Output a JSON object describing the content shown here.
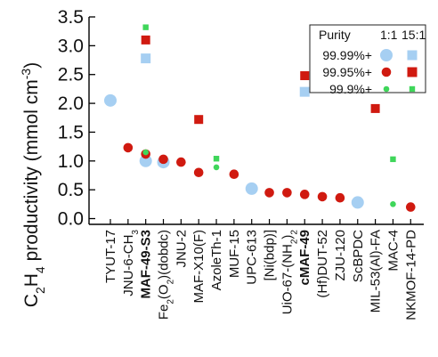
{
  "chart_data": {
    "type": "scatter",
    "title": "",
    "xlabel": "",
    "ylabel_parts": [
      "C",
      "2",
      "H",
      "4",
      " productivity (mmol cm",
      "-3",
      ")"
    ],
    "ylim": [
      -0.1,
      3.5
    ],
    "yticks": [
      0.0,
      0.5,
      1.0,
      1.5,
      2.0,
      2.5,
      3.0,
      3.5
    ],
    "ytick_labels": [
      "0.0",
      "0.5",
      "1.0",
      "1.5",
      "2.0",
      "2.5",
      "3.0",
      "3.5"
    ],
    "grid": false,
    "legend_position": "top-right",
    "categories": [
      {
        "label": "TYUT-17",
        "highlight": false
      },
      {
        "label": "JNU-6-CH3",
        "highlight": false
      },
      {
        "label": "MAF-49-S3",
        "highlight": true
      },
      {
        "label": "Fe2(O2)(dobdc)",
        "highlight": false
      },
      {
        "label": "JNU-2",
        "highlight": false
      },
      {
        "label": "MAF-X10(F)",
        "highlight": false
      },
      {
        "label": "AzoleTh-1",
        "highlight": false
      },
      {
        "label": "MUF-15",
        "highlight": false
      },
      {
        "label": "UPC-613",
        "highlight": false
      },
      {
        "label": "[Ni(bdp)]",
        "highlight": false
      },
      {
        "label": "UiO-67-(NH2)2",
        "highlight": false
      },
      {
        "label": "cMAF-49",
        "highlight": true
      },
      {
        "label": "(Hf)DUT-52",
        "highlight": false
      },
      {
        "label": "ZJU-120",
        "highlight": false
      },
      {
        "label": "ScBPDC",
        "highlight": false
      },
      {
        "label": "MIL-53(Al)-FA",
        "highlight": false
      },
      {
        "label": "MAC-4",
        "highlight": false
      },
      {
        "label": "NKMOF-14-PD",
        "highlight": false
      }
    ],
    "highlight_color": "#9a1b3c",
    "legend": {
      "header": "Purity",
      "ratio_labels": [
        "1:1",
        "15:1"
      ],
      "rows": [
        {
          "label": "99.99%+",
          "color": "#a6cff2"
        },
        {
          "label": "99.95%+",
          "color": "#d01a10"
        },
        {
          "label": "99.9%+",
          "color": "#3fd65a"
        }
      ]
    },
    "series": [
      {
        "purity": "99.99%+",
        "ratio": "1:1",
        "marker": "circle",
        "color": "#a6cff2",
        "x": [
          0,
          2,
          3,
          8,
          14
        ],
        "y": [
          2.05,
          1.0,
          0.98,
          0.52,
          0.28
        ]
      },
      {
        "purity": "99.99%+",
        "ratio": "15:1",
        "marker": "square",
        "color": "#a6cff2",
        "x": [
          2,
          11
        ],
        "y": [
          2.78,
          2.2
        ]
      },
      {
        "purity": "99.95%+",
        "ratio": "1:1",
        "marker": "circle",
        "color": "#d01a10",
        "x": [
          1,
          2,
          3,
          4,
          5,
          7,
          9,
          10,
          11,
          12,
          13,
          17
        ],
        "y": [
          1.23,
          1.12,
          1.03,
          0.98,
          0.8,
          0.77,
          0.45,
          0.45,
          0.42,
          0.38,
          0.36,
          0.2
        ]
      },
      {
        "purity": "99.95%+",
        "ratio": "15:1",
        "marker": "square",
        "color": "#d01a10",
        "x": [
          2,
          5,
          11,
          15
        ],
        "y": [
          3.1,
          1.72,
          2.48,
          1.91
        ]
      },
      {
        "purity": "99.9%+",
        "ratio": "1:1",
        "marker": "circle",
        "color": "#3fd65a",
        "x": [
          2,
          6,
          16
        ],
        "y": [
          1.15,
          0.89,
          0.25
        ]
      },
      {
        "purity": "99.9%+",
        "ratio": "15:1",
        "marker": "square",
        "color": "#3fd65a",
        "x": [
          2,
          6,
          16
        ],
        "y": [
          3.32,
          1.04,
          1.03
        ]
      }
    ]
  }
}
